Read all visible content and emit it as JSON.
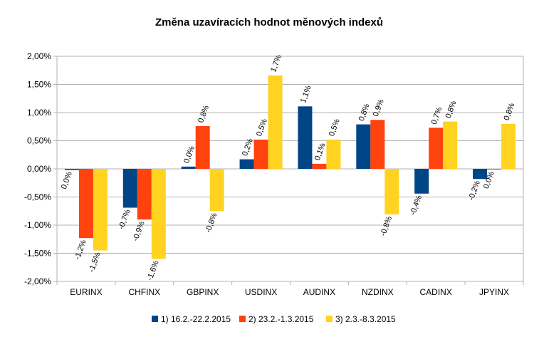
{
  "chart_data": {
    "type": "bar",
    "title": "Změna uzavíracích hodnot měnových indexů",
    "xlabel": "",
    "ylabel": "",
    "categories": [
      "EURINX",
      "CHFINX",
      "GBPINX",
      "USDINX",
      "AUDINX",
      "NZDINX",
      "CADINX",
      "JPYINX"
    ],
    "ylim": [
      -0.02,
      0.02
    ],
    "yticks": [
      -0.02,
      -0.015,
      -0.01,
      -0.005,
      0,
      0.005,
      0.01,
      0.015,
      0.02
    ],
    "ytick_labels": [
      "-2,00%",
      "-1,50%",
      "-1,00%",
      "-0,50%",
      "0,00%",
      "0,50%",
      "1,00%",
      "1,50%",
      "2,00%"
    ],
    "grid": true,
    "legend_position": "bottom",
    "series": [
      {
        "name": "1) 16.2.-22.2.2015",
        "color": "#004586",
        "values": [
          -0.0002,
          -0.0069,
          0.0004,
          0.0017,
          0.0111,
          0.0079,
          -0.0044,
          -0.0018
        ],
        "labels": [
          "0,0%",
          "-0,7%",
          "0,0%",
          "0,2%",
          "1,1%",
          "0,8%",
          "-0,4%",
          "-0,2%"
        ]
      },
      {
        "name": "2) 23.2.-1.3.2015",
        "color": "#ff420e",
        "values": [
          -0.0123,
          -0.009,
          0.0076,
          0.0052,
          0.0009,
          0.0087,
          0.0073,
          -0.0001
        ],
        "labels": [
          "-1,2%",
          "-0,9%",
          "0,8%",
          "0,5%",
          "0,1%",
          "0,9%",
          "0,7%",
          "0,0%"
        ]
      },
      {
        "name": "3) 2.3.-8.3.2015",
        "color": "#ffd320",
        "values": [
          -0.0145,
          -0.016,
          -0.0075,
          0.0166,
          0.0052,
          -0.0081,
          0.0084,
          0.008
        ],
        "labels": [
          "-1,5%",
          "-1,6%",
          "-0,8%",
          "1,7%",
          "0,5%",
          "-0,8%",
          "0,8%",
          "0,8%"
        ]
      }
    ]
  }
}
